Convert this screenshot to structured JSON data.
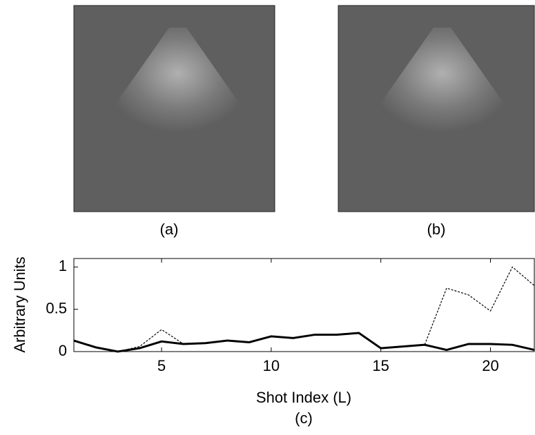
{
  "panels": {
    "a": "(a)",
    "b": "(b)"
  },
  "chart_data": {
    "type": "line",
    "caption": "(c)",
    "xlabel": "Shot Index (L)",
    "ylabel": "Arbitrary Units",
    "x": [
      1,
      2,
      3,
      4,
      5,
      6,
      7,
      8,
      9,
      10,
      11,
      12,
      13,
      14,
      15,
      16,
      17,
      18,
      19,
      20,
      21,
      22
    ],
    "series": [
      {
        "color": "#000000",
        "dash": "solid",
        "values": [
          0.13,
          0.05,
          0.0,
          0.04,
          0.12,
          0.09,
          0.1,
          0.13,
          0.11,
          0.18,
          0.16,
          0.2,
          0.2,
          0.22,
          0.04,
          0.06,
          0.08,
          0.02,
          0.09,
          0.09,
          0.08,
          0.02
        ]
      },
      {
        "color": "#000000",
        "dash": "dashed",
        "values": [
          0.13,
          0.05,
          0.0,
          0.06,
          0.26,
          0.09,
          0.1,
          0.13,
          0.11,
          0.18,
          0.16,
          0.2,
          0.2,
          0.22,
          0.04,
          0.06,
          0.08,
          0.75,
          0.67,
          0.48,
          1.0,
          0.78
        ]
      }
    ],
    "xlim": [
      1,
      22
    ],
    "ylim": [
      0,
      1.1
    ],
    "xticks": [
      5,
      10,
      15,
      20
    ],
    "yticks": [
      0,
      0.5,
      1
    ],
    "grid": false
  }
}
